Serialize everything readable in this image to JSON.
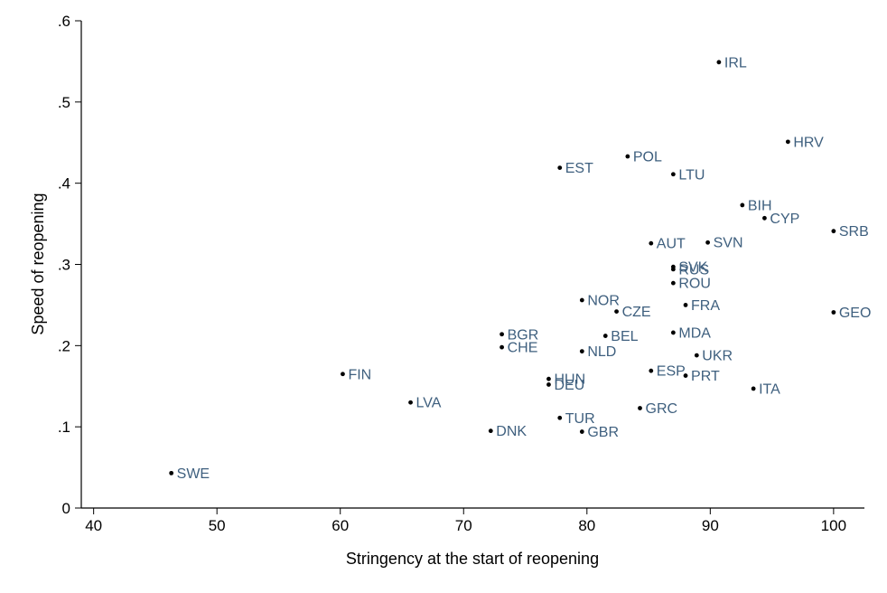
{
  "chart_data": {
    "type": "scatter",
    "xlabel": "Stringency at the start of reopening",
    "ylabel": "Speed of reopening",
    "xlim": [
      39,
      102.5
    ],
    "ylim": [
      0,
      0.6
    ],
    "xticks": [
      40,
      50,
      60,
      70,
      80,
      90,
      100
    ],
    "xtick_labels": [
      "40",
      "50",
      "60",
      "70",
      "80",
      "90",
      "100"
    ],
    "yticks": [
      0,
      0.1,
      0.2,
      0.3,
      0.4,
      0.5,
      0.6
    ],
    "ytick_labels": [
      "0",
      ".1",
      ".2",
      ".3",
      ".4",
      ".5",
      ".6"
    ],
    "grid": false,
    "legend": "none",
    "marker_color": "#000000",
    "label_color": "#3e5f7e",
    "points": [
      {
        "label": "IRL",
        "x": 90.7,
        "y": 0.549
      },
      {
        "label": "HRV",
        "x": 96.3,
        "y": 0.451
      },
      {
        "label": "POL",
        "x": 83.3,
        "y": 0.433
      },
      {
        "label": "EST",
        "x": 77.8,
        "y": 0.419
      },
      {
        "label": "LTU",
        "x": 87.0,
        "y": 0.411
      },
      {
        "label": "BIH",
        "x": 92.6,
        "y": 0.373
      },
      {
        "label": "CYP",
        "x": 94.4,
        "y": 0.357
      },
      {
        "label": "SRB",
        "x": 100.0,
        "y": 0.341
      },
      {
        "label": "AUT",
        "x": 85.2,
        "y": 0.326
      },
      {
        "label": "SVN",
        "x": 89.8,
        "y": 0.327
      },
      {
        "label": "SVK",
        "x": 87.0,
        "y": 0.297
      },
      {
        "label": "RUS",
        "x": 87.0,
        "y": 0.294
      },
      {
        "label": "ROU",
        "x": 87.0,
        "y": 0.277
      },
      {
        "label": "NOR",
        "x": 79.6,
        "y": 0.256
      },
      {
        "label": "FRA",
        "x": 88.0,
        "y": 0.25
      },
      {
        "label": "CZE",
        "x": 82.4,
        "y": 0.242
      },
      {
        "label": "GEO",
        "x": 100.0,
        "y": 0.241
      },
      {
        "label": "BGR",
        "x": 73.1,
        "y": 0.214
      },
      {
        "label": "BEL",
        "x": 81.5,
        "y": 0.212
      },
      {
        "label": "MDA",
        "x": 87.0,
        "y": 0.216
      },
      {
        "label": "CHE",
        "x": 73.1,
        "y": 0.198
      },
      {
        "label": "NLD",
        "x": 79.6,
        "y": 0.193
      },
      {
        "label": "UKR",
        "x": 88.9,
        "y": 0.188
      },
      {
        "label": "FIN",
        "x": 60.2,
        "y": 0.165
      },
      {
        "label": "ESP",
        "x": 85.2,
        "y": 0.169
      },
      {
        "label": "PRT",
        "x": 88.0,
        "y": 0.163
      },
      {
        "label": "HUN",
        "x": 76.9,
        "y": 0.159
      },
      {
        "label": "DEU",
        "x": 76.9,
        "y": 0.152
      },
      {
        "label": "ITA",
        "x": 93.5,
        "y": 0.147
      },
      {
        "label": "LVA",
        "x": 65.7,
        "y": 0.13
      },
      {
        "label": "GRC",
        "x": 84.3,
        "y": 0.123
      },
      {
        "label": "TUR",
        "x": 77.8,
        "y": 0.111
      },
      {
        "label": "DNK",
        "x": 72.2,
        "y": 0.095
      },
      {
        "label": "GBR",
        "x": 79.6,
        "y": 0.094
      },
      {
        "label": "SWE",
        "x": 46.3,
        "y": 0.043
      }
    ]
  }
}
